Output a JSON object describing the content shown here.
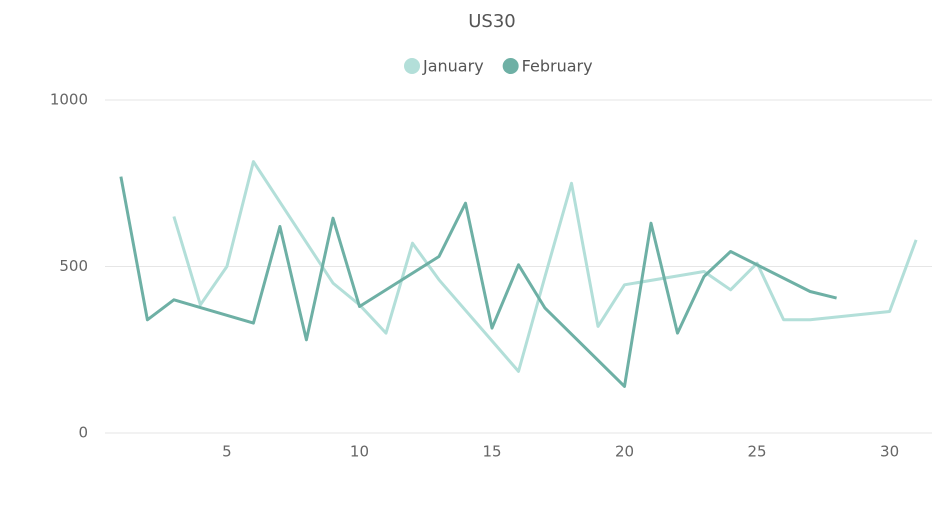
{
  "chart_data": {
    "type": "line",
    "title": "US30",
    "xlim": [
      0.4,
      31.6
    ],
    "xticks": [
      5,
      10,
      15,
      20,
      25,
      30
    ],
    "ylim": [
      0,
      1000
    ],
    "yticks": [
      0,
      500,
      1000
    ],
    "grid": true,
    "legend": "top",
    "series": [
      {
        "name": "January",
        "color": "#b3dfd9",
        "x": [
          3,
          4,
          5,
          6,
          9,
          10,
          11,
          12,
          13,
          16,
          17,
          18,
          19,
          20,
          23,
          24,
          25,
          26,
          27,
          30,
          31
        ],
        "values": [
          650,
          385,
          500,
          815,
          450,
          385,
          300,
          570,
          460,
          185,
          470,
          750,
          320,
          445,
          485,
          430,
          510,
          340,
          340,
          365,
          580
        ]
      },
      {
        "name": "February",
        "color": "#6eb0a5",
        "x": [
          1,
          2,
          3,
          6,
          7,
          8,
          9,
          10,
          13,
          14,
          15,
          16,
          17,
          20,
          21,
          22,
          23,
          24,
          27,
          28
        ],
        "values": [
          770,
          340,
          400,
          330,
          620,
          280,
          645,
          380,
          530,
          690,
          315,
          505,
          375,
          140,
          630,
          300,
          470,
          545,
          425,
          405
        ]
      }
    ]
  }
}
